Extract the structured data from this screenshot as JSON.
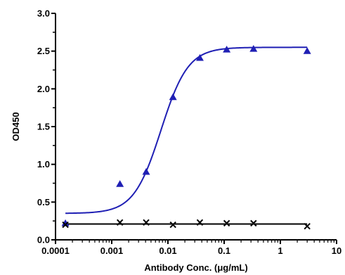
{
  "chart_data": {
    "type": "scatter",
    "title": "",
    "xlabel": "Antibody Conc. (μg/mL)",
    "ylabel": "OD450",
    "x_scale": "log",
    "xlim": [
      0.0001,
      10
    ],
    "ylim": [
      0,
      3.0
    ],
    "x_ticks": [
      "0.0001",
      "0.001",
      "0.01",
      "0.1",
      "1",
      "10"
    ],
    "y_ticks": [
      "0.0",
      "0.5",
      "1.0",
      "1.5",
      "2.0",
      "2.5",
      "3.0"
    ],
    "grid": false,
    "legend": "none",
    "series": [
      {
        "marker": "triangle",
        "color": "#1f1fb4",
        "x": [
          0.00015,
          0.0014,
          0.0041,
          0.0123,
          0.037,
          0.111,
          0.333,
          3
        ],
        "y": [
          0.22,
          0.74,
          0.9,
          1.89,
          2.41,
          2.52,
          2.53,
          2.5
        ],
        "fit": {
          "type": "4PL",
          "bottom": 0.35,
          "top": 2.55,
          "ec50": 0.0075,
          "hill": 1.8
        }
      },
      {
        "marker": "x",
        "color": "#000000",
        "x": [
          0.00015,
          0.0014,
          0.0041,
          0.0123,
          0.037,
          0.111,
          0.333,
          3
        ],
        "y": [
          0.2,
          0.23,
          0.23,
          0.2,
          0.23,
          0.22,
          0.22,
          0.18
        ],
        "fit": {
          "type": "flat",
          "level": 0.21
        }
      }
    ]
  }
}
